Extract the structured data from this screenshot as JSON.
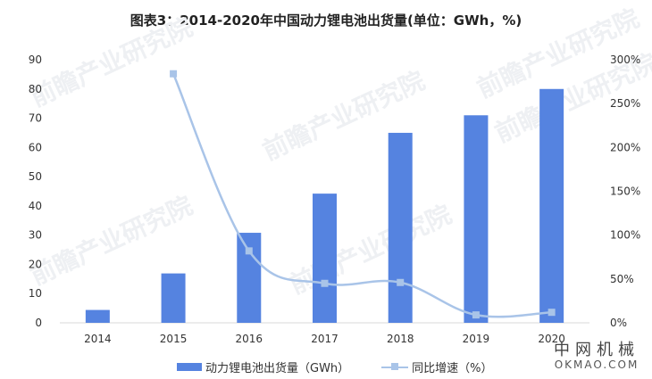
{
  "title": "图表3：2014-2020年中国动力锂电池出货量(单位：GWh，%)",
  "legend": {
    "bar_label": "动力锂电池出货量（GWh）",
    "line_label": "同比增速（%）"
  },
  "watermark": {
    "text": "前瞻产业研究院",
    "logo_cn": "中网机械",
    "logo_en": "OKMAO.COM"
  },
  "colors": {
    "bar": "#5583e0",
    "line": "#a9c4e8",
    "axis": "#d9d9d9",
    "tick_text": "#333333"
  },
  "chart_data": {
    "type": "bar+line",
    "title": "图表3：2014-2020年中国动力锂电池出货量(单位：GWh，%)",
    "categories": [
      "2014",
      "2015",
      "2016",
      "2017",
      "2018",
      "2019",
      "2020"
    ],
    "series": [
      {
        "name": "动力锂电池出货量（GWh）",
        "type": "bar",
        "axis": "left",
        "values": [
          4.4,
          16.9,
          30.8,
          44.2,
          65.0,
          71.0,
          80.0
        ]
      },
      {
        "name": "同比增速（%）",
        "type": "line",
        "axis": "right",
        "values": [
          null,
          284,
          82,
          45,
          46,
          9,
          12
        ]
      }
    ],
    "left_axis": {
      "ylim": [
        0,
        90
      ],
      "ticks": [
        "0",
        "10",
        "20",
        "30",
        "40",
        "50",
        "60",
        "70",
        "80",
        "90"
      ]
    },
    "right_axis": {
      "ylim": [
        0,
        300
      ],
      "ticks": [
        "0%",
        "50%",
        "100%",
        "150%",
        "200%",
        "250%",
        "300%"
      ]
    },
    "xlabel": "",
    "ylabel": "",
    "grid": false,
    "legend_position": "bottom"
  }
}
